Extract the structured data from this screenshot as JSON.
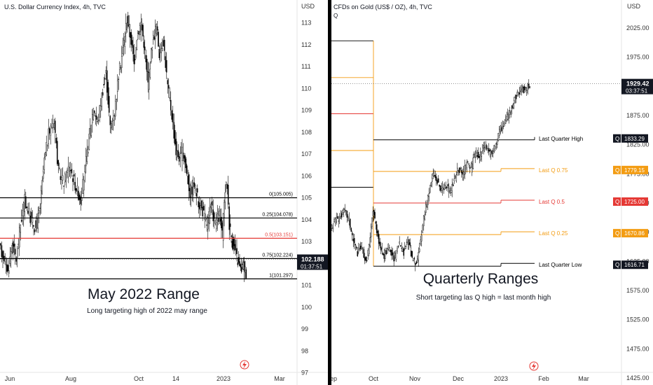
{
  "chart_data": [
    {
      "type": "candlestick",
      "title": "U.S. Dollar Currency Index, 4h, TVC",
      "currency_label": "USD",
      "x_ticks": [
        "Jun",
        "Aug",
        "Oct",
        "14",
        "2023",
        "Mar"
      ],
      "y_ticks": [
        97.0,
        98.0,
        99.0,
        100.0,
        101.0,
        102.0,
        103.0,
        104.0,
        105.0,
        106.0,
        107.0,
        108.0,
        109.0,
        110.0,
        111.0,
        112.0,
        113.0
      ],
      "y_range": [
        96.7,
        114.3
      ],
      "last_price": "102.188",
      "countdown": "01:37:51",
      "series_path": [
        [
          0,
          102.7
        ],
        [
          8,
          102.2
        ],
        [
          12,
          101.6
        ],
        [
          18,
          102.9
        ],
        [
          24,
          102.2
        ],
        [
          30,
          103.8
        ],
        [
          36,
          104.9
        ],
        [
          44,
          104.1
        ],
        [
          52,
          103.6
        ],
        [
          58,
          104.6
        ],
        [
          64,
          106.7
        ],
        [
          70,
          107.9
        ],
        [
          78,
          108.6
        ],
        [
          84,
          106.2
        ],
        [
          92,
          105.7
        ],
        [
          100,
          106.5
        ],
        [
          108,
          105.6
        ],
        [
          116,
          104.9
        ],
        [
          122,
          106.3
        ],
        [
          128,
          107.7
        ],
        [
          134,
          109.2
        ],
        [
          140,
          108.4
        ],
        [
          146,
          109.7
        ],
        [
          152,
          110.7
        ],
        [
          158,
          108.2
        ],
        [
          164,
          108.9
        ],
        [
          170,
          110.6
        ],
        [
          176,
          111.8
        ],
        [
          182,
          113.2
        ],
        [
          188,
          112.2
        ],
        [
          192,
          111.1
        ],
        [
          196,
          112.4
        ],
        [
          202,
          113.0
        ],
        [
          206,
          112.1
        ],
        [
          212,
          110.2
        ],
        [
          218,
          112.1
        ],
        [
          224,
          112.9
        ],
        [
          228,
          111.6
        ],
        [
          234,
          112.2
        ],
        [
          240,
          110.1
        ],
        [
          246,
          108.8
        ],
        [
          252,
          107.1
        ],
        [
          258,
          106.8
        ],
        [
          262,
          107.2
        ],
        [
          266,
          106.4
        ],
        [
          272,
          105.2
        ],
        [
          278,
          105.6
        ],
        [
          284,
          104.8
        ],
        [
          290,
          104.4
        ],
        [
          296,
          103.8
        ],
        [
          302,
          104.6
        ],
        [
          308,
          103.8
        ],
        [
          314,
          104.2
        ],
        [
          318,
          103.3
        ],
        [
          322,
          105.4
        ],
        [
          325,
          105.6
        ],
        [
          328,
          103.8
        ],
        [
          332,
          103.0
        ],
        [
          336,
          102.6
        ],
        [
          340,
          102.1
        ],
        [
          344,
          101.7
        ],
        [
          348,
          101.9
        ],
        [
          352,
          101.6
        ]
      ],
      "levels": [
        {
          "label": "0(105.005)",
          "value": 105.005,
          "color": "#000000"
        },
        {
          "label": "0.25(104.078)",
          "value": 104.078,
          "color": "#000000"
        },
        {
          "label": "0.5(103.151)",
          "value": 103.151,
          "color": "#e53935"
        },
        {
          "label": "0.75(102.224)",
          "value": 102.224,
          "color": "#000000"
        },
        {
          "label": "1(101.297)",
          "value": 101.297,
          "color": "#000000"
        }
      ],
      "annotation_title": "May 2022 Range",
      "annotation_subtitle": "Long targeting high of 2022 may range"
    },
    {
      "type": "candlestick",
      "title": "CFDs on Gold (US$ / OZ), 4h, TVC",
      "subtitle_flag": "Q",
      "currency_label": "USD",
      "x_ticks": [
        "Sep",
        "Oct",
        "Nov",
        "Dec",
        "2023",
        "Feb",
        "Mar"
      ],
      "y_ticks": [
        1425.0,
        1475.0,
        1525.0,
        1575.0,
        1625.0,
        1675.0,
        1725.0,
        1775.0,
        1825.0,
        1875.0,
        1925.0,
        1975.0,
        2025.0
      ],
      "y_ticks_labels": [
        "1425.00",
        "1475.00",
        "1525.00",
        "1575.00",
        "1625.00",
        "1675.00",
        "1725.00",
        "1775.00",
        "1825.00",
        "1875.00",
        "1925.00",
        "1975.00",
        "2025.00"
      ],
      "y_range": [
        1413,
        2073
      ],
      "last_price": "1929.42",
      "countdown": "03:37:51",
      "series_path": [
        [
          0,
          1682
        ],
        [
          8,
          1698
        ],
        [
          14,
          1702
        ],
        [
          20,
          1712
        ],
        [
          26,
          1695
        ],
        [
          32,
          1660
        ],
        [
          38,
          1640
        ],
        [
          44,
          1652
        ],
        [
          50,
          1622
        ],
        [
          56,
          1662
        ],
        [
          60,
          1715
        ],
        [
          64,
          1688
        ],
        [
          70,
          1652
        ],
        [
          76,
          1634
        ],
        [
          82,
          1650
        ],
        [
          90,
          1628
        ],
        [
          98,
          1656
        ],
        [
          104,
          1640
        ],
        [
          110,
          1665
        ],
        [
          116,
          1628
        ],
        [
          122,
          1618
        ],
        [
          128,
          1660
        ],
        [
          134,
          1710
        ],
        [
          140,
          1745
        ],
        [
          146,
          1775
        ],
        [
          152,
          1762
        ],
        [
          158,
          1744
        ],
        [
          164,
          1754
        ],
        [
          170,
          1742
        ],
        [
          176,
          1762
        ],
        [
          182,
          1786
        ],
        [
          188,
          1772
        ],
        [
          194,
          1795
        ],
        [
          200,
          1782
        ],
        [
          206,
          1812
        ],
        [
          212,
          1802
        ],
        [
          218,
          1825
        ],
        [
          224,
          1818
        ],
        [
          230,
          1808
        ],
        [
          236,
          1830
        ],
        [
          242,
          1852
        ],
        [
          248,
          1862
        ],
        [
          254,
          1875
        ],
        [
          260,
          1898
        ],
        [
          266,
          1912
        ],
        [
          272,
          1922
        ],
        [
          278,
          1918
        ],
        [
          284,
          1929
        ]
      ],
      "prior_quarter_levels": [
        {
          "value": 2003,
          "color": "#000000"
        },
        {
          "value": 1940,
          "color": "#f39c12"
        },
        {
          "value": 1878,
          "color": "#e53935"
        },
        {
          "value": 1815,
          "color": "#f39c12"
        },
        {
          "value": 1752,
          "color": "#000000"
        }
      ],
      "levels": [
        {
          "label": "Last Quarter High",
          "tag": "1833.29",
          "value": 1833.29,
          "color": "#000000"
        },
        {
          "label": "Last Q 0.75",
          "tag": "1779.15",
          "value": 1779.15,
          "color": "#f39c12"
        },
        {
          "label": "Last Q 0.5",
          "tag": "1725.00",
          "value": 1725.0,
          "color": "#e53935"
        },
        {
          "label": "Last Q 0.25",
          "tag": "1670.86",
          "value": 1670.86,
          "color": "#f39c12"
        },
        {
          "label": "Last Quarter Low",
          "tag": "1616.71",
          "value": 1616.71,
          "color": "#000000"
        }
      ],
      "level_flag": "Q",
      "annotation_title": "Quarterly Ranges",
      "annotation_subtitle": "Short targeting las Q high = last month high"
    }
  ]
}
